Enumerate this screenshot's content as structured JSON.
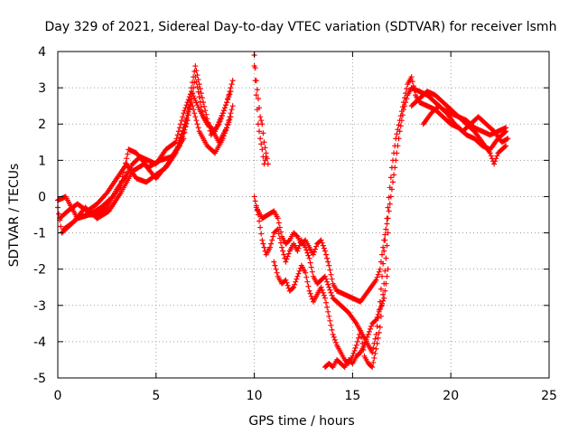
{
  "chart_data": {
    "type": "scatter",
    "title": "Day 329 of 2021, Sidereal Day-to-day VTEC variation (SDTVAR) for receiver lsmh",
    "xlabel": "GPS time / hours",
    "ylabel": "SDTVAR / TECUs",
    "xlim": [
      0,
      25
    ],
    "ylim": [
      -5,
      4
    ],
    "xticks": [
      0,
      5,
      10,
      15,
      20,
      25
    ],
    "yticks": [
      -5,
      -4,
      -3,
      -2,
      -1,
      0,
      1,
      2,
      3,
      4
    ],
    "grid": true,
    "marker": "+",
    "series": [
      {
        "name": "lsmh",
        "color": "#ff0000",
        "tracks": [
          [
            [
              0.0,
              -0.3
            ],
            [
              0.2,
              -1.0
            ],
            [
              0.6,
              -0.8
            ],
            [
              1.0,
              -0.6
            ],
            [
              1.5,
              -0.5
            ],
            [
              2.0,
              -0.5
            ],
            [
              2.5,
              -0.3
            ],
            [
              3.0,
              0.2
            ],
            [
              3.5,
              0.6
            ],
            [
              3.8,
              0.9
            ],
            [
              4.2,
              1.1
            ],
            [
              4.6,
              1.0
            ],
            [
              5.0,
              0.9
            ],
            [
              5.5,
              1.3
            ],
            [
              6.0,
              1.5
            ],
            [
              6.4,
              2.3
            ],
            [
              6.8,
              2.9
            ],
            [
              7.2,
              2.4
            ],
            [
              7.6,
              2.0
            ],
            [
              8.0,
              1.8
            ],
            [
              8.4,
              2.3
            ],
            [
              8.8,
              2.9
            ]
          ],
          [
            [
              0.1,
              -0.6
            ],
            [
              0.5,
              -0.4
            ],
            [
              1.0,
              -0.2
            ],
            [
              1.5,
              -0.4
            ],
            [
              2.0,
              -0.2
            ],
            [
              2.5,
              0.1
            ],
            [
              3.0,
              0.5
            ],
            [
              3.5,
              0.9
            ],
            [
              4.0,
              0.5
            ],
            [
              4.5,
              0.4
            ],
            [
              5.0,
              0.6
            ],
            [
              5.5,
              0.8
            ],
            [
              6.0,
              1.2
            ],
            [
              6.4,
              1.9
            ],
            [
              6.8,
              2.6
            ],
            [
              7.2,
              1.8
            ],
            [
              7.6,
              1.4
            ],
            [
              8.0,
              1.2
            ],
            [
              8.4,
              1.6
            ],
            [
              8.8,
              2.2
            ]
          ],
          [
            [
              0.0,
              -0.1
            ],
            [
              0.4,
              0.0
            ],
            [
              1.0,
              -0.6
            ],
            [
              1.6,
              -0.5
            ],
            [
              2.2,
              -0.3
            ],
            [
              2.8,
              0.0
            ],
            [
              3.2,
              0.3
            ],
            [
              3.6,
              1.3
            ],
            [
              4.0,
              1.2
            ],
            [
              4.6,
              0.8
            ],
            [
              5.2,
              1.0
            ],
            [
              5.8,
              1.1
            ],
            [
              6.4,
              1.6
            ],
            [
              6.8,
              3.0
            ],
            [
              7.0,
              3.6
            ],
            [
              7.4,
              2.6
            ],
            [
              7.8,
              1.7
            ],
            [
              8.2,
              2.0
            ],
            [
              8.6,
              2.6
            ],
            [
              8.9,
              3.2
            ]
          ],
          [
            [
              0.3,
              -0.9
            ],
            [
              0.8,
              -0.7
            ],
            [
              1.4,
              -0.3
            ],
            [
              2.0,
              -0.6
            ],
            [
              2.6,
              -0.4
            ],
            [
              3.2,
              0.1
            ],
            [
              3.8,
              0.7
            ],
            [
              4.4,
              0.9
            ],
            [
              5.0,
              0.5
            ],
            [
              5.6,
              0.9
            ],
            [
              6.2,
              1.4
            ],
            [
              6.6,
              2.1
            ],
            [
              7.0,
              3.3
            ],
            [
              7.4,
              2.2
            ],
            [
              7.8,
              1.9
            ],
            [
              8.2,
              1.5
            ],
            [
              8.6,
              1.9
            ],
            [
              8.9,
              2.5
            ]
          ],
          [
            [
              10.0,
              3.9
            ],
            [
              10.1,
              3.2
            ],
            [
              10.2,
              2.7
            ],
            [
              10.3,
              2.2
            ],
            [
              10.4,
              2.0
            ],
            [
              10.5,
              1.5
            ],
            [
              10.6,
              1.2
            ],
            [
              10.7,
              0.9
            ]
          ],
          [
            [
              10.0,
              3.6
            ],
            [
              10.1,
              2.8
            ],
            [
              10.2,
              2.0
            ],
            [
              10.3,
              1.6
            ],
            [
              10.4,
              1.3
            ],
            [
              10.5,
              0.9
            ],
            [
              10.6,
              1.1
            ]
          ],
          [
            [
              10.0,
              0.0
            ],
            [
              10.2,
              -0.5
            ],
            [
              10.4,
              -1.2
            ],
            [
              10.6,
              -1.6
            ],
            [
              10.8,
              -1.4
            ],
            [
              11.0,
              -1.0
            ],
            [
              11.2,
              -0.9
            ],
            [
              11.4,
              -1.4
            ],
            [
              11.6,
              -1.8
            ],
            [
              11.8,
              -1.5
            ],
            [
              12.0,
              -1.3
            ],
            [
              12.2,
              -1.5
            ],
            [
              12.4,
              -1.2
            ],
            [
              12.6,
              -1.4
            ],
            [
              12.8,
              -1.7
            ],
            [
              13.0,
              -2.2
            ],
            [
              13.2,
              -2.4
            ],
            [
              13.4,
              -2.3
            ],
            [
              13.6,
              -2.2
            ],
            [
              13.8,
              -2.5
            ],
            [
              14.0,
              -2.8
            ],
            [
              14.4,
              -3.0
            ],
            [
              14.8,
              -3.2
            ],
            [
              15.2,
              -3.5
            ],
            [
              15.6,
              -3.9
            ],
            [
              16.0,
              -4.3
            ],
            [
              16.2,
              -3.8
            ],
            [
              16.4,
              -2.9
            ],
            [
              16.6,
              -1.5
            ],
            [
              16.8,
              -0.3
            ],
            [
              17.0,
              0.8
            ],
            [
              17.2,
              1.6
            ],
            [
              17.4,
              2.1
            ],
            [
              17.6,
              2.6
            ],
            [
              17.8,
              3.1
            ],
            [
              18.0,
              3.3
            ],
            [
              18.2,
              2.8
            ],
            [
              18.4,
              2.6
            ],
            [
              18.8,
              2.5
            ],
            [
              19.2,
              2.4
            ],
            [
              19.6,
              2.2
            ],
            [
              20.0,
              2.0
            ],
            [
              20.4,
              1.9
            ],
            [
              20.8,
              1.7
            ],
            [
              21.2,
              1.6
            ],
            [
              21.6,
              1.4
            ],
            [
              22.0,
              1.3
            ],
            [
              22.4,
              1.6
            ],
            [
              22.8,
              1.8
            ]
          ],
          [
            [
              10.1,
              -0.3
            ],
            [
              10.4,
              -0.6
            ],
            [
              10.7,
              -0.5
            ],
            [
              11.0,
              -0.4
            ],
            [
              11.2,
              -0.6
            ],
            [
              11.4,
              -1.1
            ],
            [
              11.6,
              -1.3
            ],
            [
              11.8,
              -1.2
            ],
            [
              12.0,
              -1.0
            ],
            [
              12.2,
              -1.1
            ],
            [
              12.4,
              -1.3
            ],
            [
              12.6,
              -1.2
            ],
            [
              12.8,
              -1.4
            ],
            [
              13.0,
              -1.6
            ],
            [
              13.2,
              -1.3
            ],
            [
              13.4,
              -1.2
            ],
            [
              13.6,
              -1.5
            ],
            [
              13.8,
              -1.9
            ],
            [
              14.0,
              -2.4
            ],
            [
              14.2,
              -2.6
            ],
            [
              14.6,
              -2.7
            ],
            [
              15.0,
              -2.8
            ],
            [
              15.4,
              -2.9
            ],
            [
              15.8,
              -2.6
            ],
            [
              16.2,
              -2.3
            ],
            [
              16.4,
              -2.0
            ],
            [
              16.6,
              -1.2
            ],
            [
              16.8,
              -0.6
            ],
            [
              17.0,
              0.2
            ],
            [
              17.2,
              1.0
            ],
            [
              17.4,
              1.8
            ],
            [
              17.6,
              2.4
            ],
            [
              17.8,
              2.8
            ],
            [
              18.0,
              3.0
            ],
            [
              18.4,
              2.9
            ],
            [
              18.8,
              2.8
            ],
            [
              19.2,
              2.6
            ],
            [
              19.6,
              2.4
            ],
            [
              20.0,
              2.3
            ],
            [
              20.4,
              2.2
            ],
            [
              20.8,
              2.1
            ],
            [
              21.2,
              1.9
            ],
            [
              21.6,
              1.8
            ],
            [
              22.0,
              1.7
            ],
            [
              22.4,
              1.8
            ],
            [
              22.8,
              1.9
            ]
          ],
          [
            [
              11.0,
              -1.8
            ],
            [
              11.2,
              -2.2
            ],
            [
              11.4,
              -2.4
            ],
            [
              11.6,
              -2.3
            ],
            [
              11.8,
              -2.6
            ],
            [
              12.0,
              -2.5
            ],
            [
              12.2,
              -2.2
            ],
            [
              12.4,
              -1.9
            ],
            [
              12.6,
              -2.1
            ],
            [
              12.8,
              -2.6
            ],
            [
              13.0,
              -2.9
            ],
            [
              13.2,
              -2.7
            ],
            [
              13.4,
              -2.5
            ],
            [
              13.6,
              -2.8
            ],
            [
              13.8,
              -3.3
            ],
            [
              14.0,
              -3.8
            ],
            [
              14.2,
              -4.1
            ],
            [
              14.4,
              -4.3
            ],
            [
              14.6,
              -4.5
            ],
            [
              14.8,
              -4.6
            ],
            [
              15.0,
              -4.4
            ],
            [
              15.2,
              -4.1
            ],
            [
              15.4,
              -3.7
            ],
            [
              15.6,
              -4.4
            ],
            [
              15.8,
              -4.6
            ],
            [
              16.0,
              -4.7
            ],
            [
              16.2,
              -4.2
            ],
            [
              16.4,
              -3.6
            ],
            [
              16.6,
              -2.4
            ],
            [
              16.8,
              -1.0
            ]
          ],
          [
            [
              13.6,
              -4.7
            ],
            [
              13.8,
              -4.6
            ],
            [
              14.0,
              -4.7
            ],
            [
              14.2,
              -4.5
            ],
            [
              14.4,
              -4.6
            ],
            [
              14.6,
              -4.7
            ],
            [
              14.8,
              -4.5
            ],
            [
              15.0,
              -4.6
            ],
            [
              15.2,
              -4.4
            ],
            [
              15.4,
              -4.3
            ],
            [
              15.6,
              -4.1
            ],
            [
              15.8,
              -3.8
            ],
            [
              16.0,
              -3.5
            ],
            [
              16.2,
              -3.4
            ],
            [
              16.4,
              -3.1
            ],
            [
              16.6,
              -2.8
            ],
            [
              16.8,
              -2.0
            ]
          ],
          [
            [
              18.0,
              2.5
            ],
            [
              18.4,
              2.7
            ],
            [
              18.8,
              2.9
            ],
            [
              19.2,
              2.8
            ],
            [
              19.6,
              2.6
            ],
            [
              20.0,
              2.4
            ],
            [
              20.4,
              2.2
            ],
            [
              20.8,
              2.0
            ],
            [
              21.2,
              1.8
            ],
            [
              21.6,
              1.5
            ],
            [
              22.0,
              1.2
            ],
            [
              22.2,
              0.9
            ],
            [
              22.4,
              1.2
            ],
            [
              22.8,
              1.4
            ]
          ],
          [
            [
              18.6,
              2.0
            ],
            [
              19.0,
              2.3
            ],
            [
              19.4,
              2.5
            ],
            [
              19.8,
              2.3
            ],
            [
              20.2,
              2.0
            ],
            [
              20.6,
              1.8
            ],
            [
              21.0,
              2.0
            ],
            [
              21.4,
              2.2
            ],
            [
              21.8,
              2.0
            ],
            [
              22.2,
              1.8
            ],
            [
              22.6,
              1.5
            ],
            [
              22.9,
              1.6
            ]
          ]
        ]
      }
    ]
  }
}
